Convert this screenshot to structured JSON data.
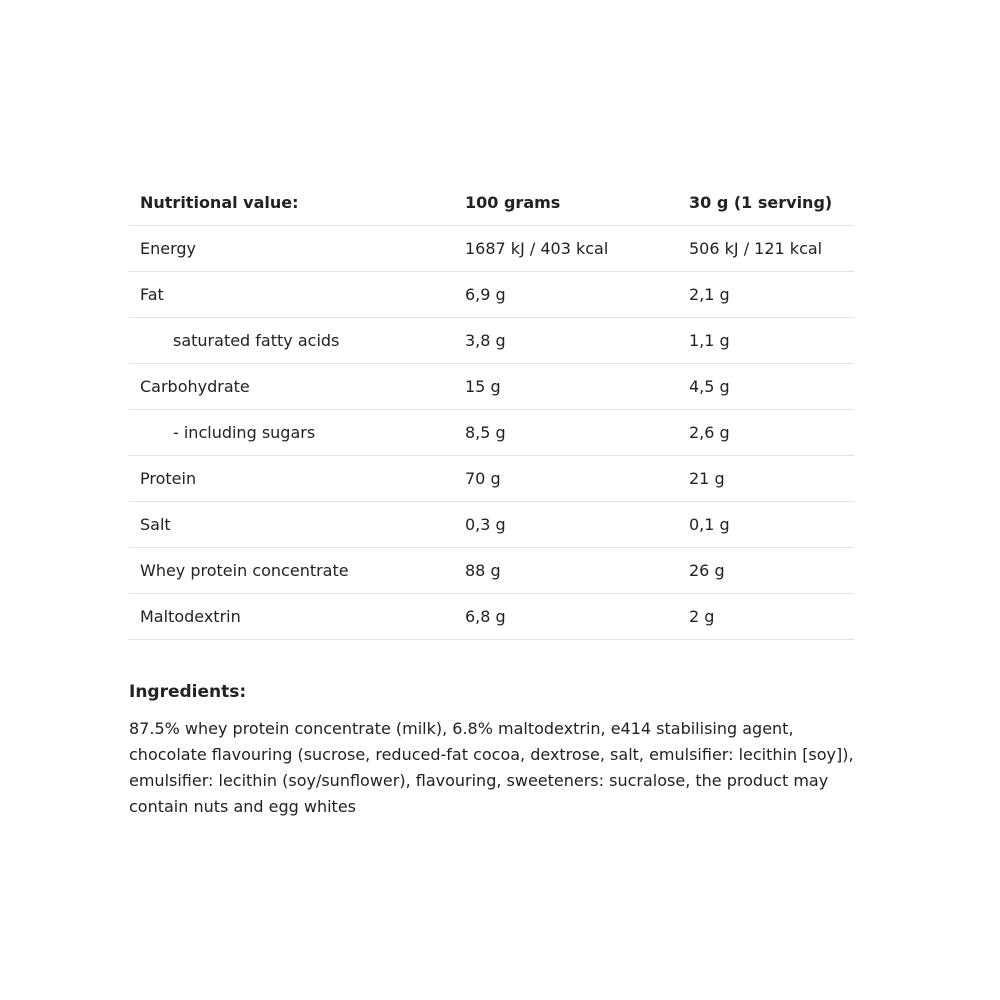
{
  "table": {
    "header": [
      "Nutritional value:",
      "100 grams",
      "30 g (1 serving)"
    ],
    "rows": [
      [
        "Energy",
        "1687 kJ / 403 kcal",
        "506 kJ / 121 kcal"
      ],
      [
        "Fat",
        "6,9 g",
        "2,1 g"
      ],
      [
        "saturated fatty acids",
        "3,8 g",
        "1,1 g"
      ],
      [
        "Carbohydrate",
        "15 g",
        "4,5 g"
      ],
      [
        "- including sugars",
        "8,5 g",
        "2,6 g"
      ],
      [
        "Protein",
        "70 g",
        "21 g"
      ],
      [
        "Salt",
        "0,3 g",
        "0,1 g"
      ],
      [
        "Whey protein concentrate",
        "88 g",
        "26 g"
      ],
      [
        "Maltodextrin",
        "6,8 g",
        "2 g"
      ]
    ]
  },
  "ingredients": {
    "title": "Ingredients:",
    "text": "87.5% whey protein concentrate (milk), 6.8% maltodextrin, e414 stabilising agent, chocolate flavouring (sucrose, reduced-fat cocoa, dextrose, salt, emulsifier: lecithin [soy]), emulsifier: lecithin (soy/sunflower), flavouring, sweeteners: sucralose, the product may contain nuts and egg whites"
  }
}
